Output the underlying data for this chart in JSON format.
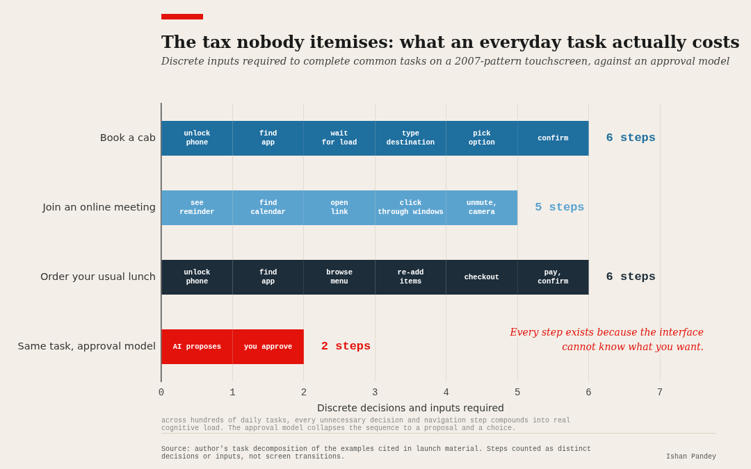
{
  "chart_data": {
    "type": "bar",
    "orientation": "horizontal",
    "stacked": true,
    "title": "The tax nobody itemises: what an everyday task actually costs",
    "subtitle": "Discrete inputs required to complete common tasks on a 2007-pattern touchscreen, against an approval model",
    "xlabel": "Discrete decisions and inputs required",
    "categories": [
      "Book a cab",
      "Join an online meeting",
      "Order your usual lunch",
      "Same task, approval model"
    ],
    "series": [
      {
        "colors": [
          "#1f6f9f",
          "#5ba3cf",
          "#1d2d3a",
          "#e3120b"
        ],
        "values": [
          1,
          1,
          1,
          1
        ],
        "value_labels": [
          "unlock\nphone",
          "see\nreminder",
          "unlock\nphone",
          "AI proposes"
        ]
      },
      {
        "colors": [
          "#1f6f9f",
          "#5ba3cf",
          "#1d2d3a",
          "#e3120b"
        ],
        "values": [
          1,
          1,
          1,
          1
        ],
        "value_labels": [
          "find\napp",
          "find\ncalendar",
          "find\napp",
          "you approve"
        ]
      },
      {
        "colors": [
          "#1f6f9f",
          "#5ba3cf",
          "#1d2d3a",
          "#e3120b"
        ],
        "values": [
          1,
          1,
          1,
          null
        ],
        "value_labels": [
          "wait\nfor load",
          "open\nlink",
          "browse\nmenu",
          null
        ]
      },
      {
        "colors": [
          "#1f6f9f",
          "#5ba3cf",
          "#1d2d3a",
          "#e3120b"
        ],
        "values": [
          1,
          1,
          1,
          null
        ],
        "value_labels": [
          "type\ndestination",
          "click\nthrough windows",
          "re-add\nitems",
          null
        ]
      },
      {
        "colors": [
          "#1f6f9f",
          "#5ba3cf",
          "#1d2d3a",
          "#e3120b"
        ],
        "values": [
          1,
          1,
          1,
          null
        ],
        "value_labels": [
          "pick\noption",
          "unmute,\ncamera",
          "checkout",
          null
        ]
      },
      {
        "colors": [
          "#1f6f9f",
          "#5ba3cf",
          "#1d2d3a",
          "#e3120b"
        ],
        "values": [
          1,
          null,
          1,
          null
        ],
        "value_labels": [
          "confirm",
          null,
          "pay,\nconfirm",
          null
        ]
      }
    ],
    "totals": [
      "6 steps",
      "5 steps",
      "6 steps",
      "2 steps"
    ],
    "xlim": [
      0,
      7
    ],
    "xticks": [
      0,
      1,
      2,
      3,
      4,
      5,
      6,
      7
    ],
    "grid": "x",
    "legend": false,
    "annotations": [
      "Every step exists because the interface cannot know what you want.",
      "across hundreds of daily tasks, every unnecessary decision and navigation step compounds into real cognitive load. The approval model collapses the sequence to a proposal and a choice.",
      "Source: author's task decomposition of the examples cited in launch material. Steps counted as distinct decisions or inputs, not screen transitions.",
      "Ishan Pandey"
    ]
  }
}
